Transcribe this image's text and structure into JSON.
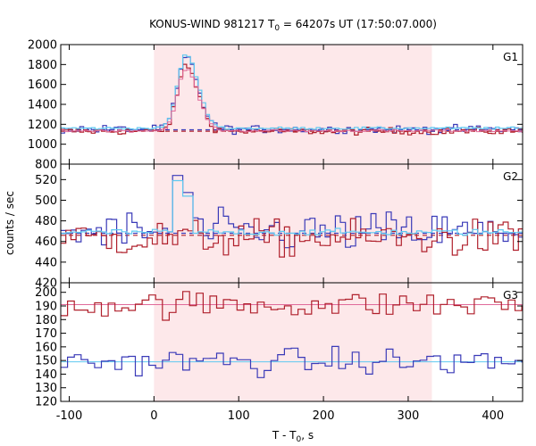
{
  "chart_data": {
    "type": "line",
    "title": "KONUS-WIND 981217 T",
    "title_sub": "0",
    "title_rest": " = 64207s UT (17:50:07.000)",
    "xlabel": "T - T",
    "xlabel_sub": "0",
    "xlabel_rest": ", s",
    "ylabel": "counts / sec",
    "xlim": [
      -110,
      435
    ],
    "x_ticks": [
      -100,
      0,
      100,
      200,
      300,
      400
    ],
    "x_tick_labels": [
      "-100",
      "0",
      "100",
      "200",
      "300",
      "400"
    ],
    "shaded_interval": [
      0,
      328
    ],
    "colors": {
      "shade": "#fde8ea",
      "red": "#b0202c",
      "blue": "#3a3ab8",
      "cyan": "#5ec8f0",
      "pink": "#e06a9a",
      "grid": "#000000"
    },
    "panels": [
      {
        "name": "G1",
        "ylim": [
          800,
          2000
        ],
        "y_ticks": [
          800,
          1000,
          1200,
          1400,
          1600,
          1800,
          2000
        ],
        "y_tick_labels": [
          "800",
          "1000",
          "1200",
          "1400",
          "1600",
          "1800",
          "2000"
        ],
        "background": 1130,
        "peak_center": 38,
        "peak_amplitude": 720,
        "red_base": 1130,
        "blue_base": 1150
      },
      {
        "name": "G2",
        "ylim": [
          420,
          535
        ],
        "y_ticks": [
          420,
          440,
          460,
          480,
          500,
          520
        ],
        "y_tick_labels": [
          "420",
          "440",
          "460",
          "480",
          "500",
          "520"
        ],
        "background": 466,
        "peak_center": 36,
        "peak_amplitude": 55,
        "red_base": 463,
        "blue_base": 469
      },
      {
        "name": "G3",
        "ylim": [
          120,
          207
        ],
        "y_ticks": [
          120,
          130,
          140,
          150,
          160,
          170,
          180,
          190,
          200
        ],
        "y_tick_labels": [
          "120",
          "130",
          "140",
          "150",
          "160",
          "170",
          "180",
          "190",
          "200"
        ],
        "red_base": 191,
        "blue_base": 149,
        "red_fit": 191,
        "blue_fit": 149
      }
    ]
  }
}
